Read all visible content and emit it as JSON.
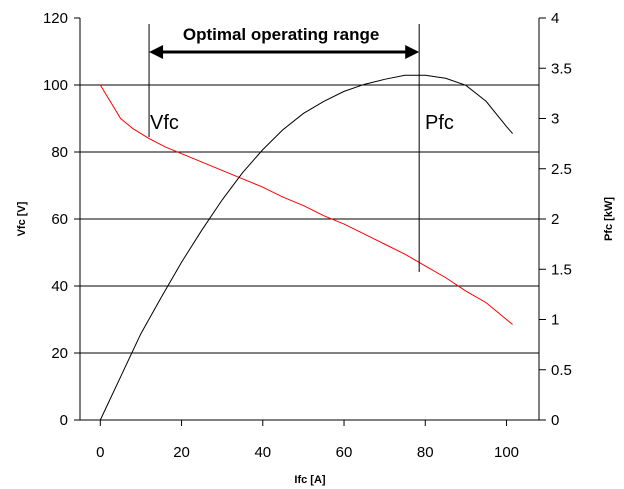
{
  "chart_data": {
    "type": "line",
    "xlabel": "Ifc [A]",
    "ylabel": "Vfc [V]",
    "y2label": "Pfc [kW]",
    "xlim": [
      -5,
      108
    ],
    "ylim": [
      0,
      120
    ],
    "y2lim": [
      0,
      4
    ],
    "xticks": [
      "0",
      "20",
      "40",
      "60",
      "80",
      "100"
    ],
    "xtick_values": [
      0,
      20,
      40,
      60,
      80,
      100
    ],
    "yticks": [
      "0",
      "20",
      "40",
      "60",
      "80",
      "100",
      "120"
    ],
    "ytick_values": [
      0,
      20,
      40,
      60,
      80,
      100,
      120
    ],
    "y2ticks": [
      "0",
      "0.5",
      "1",
      "1.5",
      "2",
      "2.5",
      "3",
      "3.5",
      "4"
    ],
    "y2tick_values": [
      0,
      0.5,
      1,
      1.5,
      2,
      2.5,
      3,
      3.5,
      4
    ],
    "grid": "horizontal",
    "colors": {
      "vfc": "#ff0000",
      "pfc": "#000000",
      "grid": "#000000"
    },
    "series": [
      {
        "name": "Vfc",
        "axis": "left",
        "color": "#ff0000",
        "x": [
          0,
          2,
          5,
          8,
          12,
          16,
          20,
          25,
          30,
          35,
          40,
          45,
          50,
          55,
          60,
          65,
          70,
          75,
          80,
          85,
          90,
          95,
          100,
          101.5
        ],
        "y": [
          100,
          96,
          90,
          87,
          84,
          81.5,
          79.5,
          77,
          74.5,
          72,
          69.5,
          66.5,
          64,
          61,
          58.5,
          55.5,
          52.5,
          49.5,
          46,
          42.5,
          38.5,
          35,
          30,
          28.5
        ]
      },
      {
        "name": "Pfc",
        "axis": "right",
        "color": "#000000",
        "x": [
          0,
          5,
          10,
          15,
          20,
          25,
          30,
          35,
          40,
          45,
          50,
          55,
          60,
          65,
          70,
          75,
          80,
          85,
          90,
          95,
          100,
          101.5
        ],
        "y": [
          0,
          0.43,
          0.86,
          1.22,
          1.57,
          1.89,
          2.19,
          2.46,
          2.69,
          2.89,
          3.05,
          3.17,
          3.27,
          3.34,
          3.39,
          3.43,
          3.43,
          3.4,
          3.33,
          3.17,
          2.92,
          2.85
        ]
      }
    ],
    "annotations": [
      {
        "text": "Optimal operating range",
        "x_start": 12,
        "x_end": 78.5
      },
      {
        "text": "Vfc",
        "target": "Vfc"
      },
      {
        "text": "Pfc",
        "target": "Pfc"
      }
    ]
  }
}
